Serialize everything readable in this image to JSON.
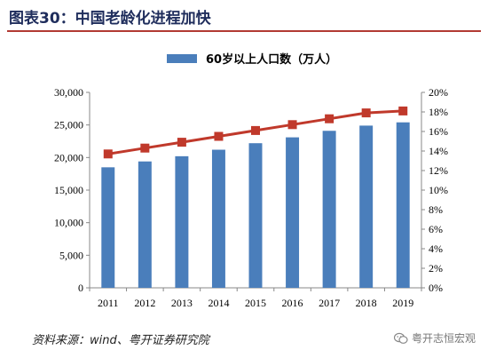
{
  "figure": {
    "title": "图表30：中国老龄化进程加快",
    "source": "资料来源：wind、粤开证券研究院",
    "watermark": "粤开志恒宏观",
    "watermark_icon": "wechat-icon"
  },
  "colors": {
    "bar": "#4a7ebb",
    "line": "#c0392b",
    "title": "#1f2d5c",
    "rule": "#b23a33",
    "axis": "#888888"
  },
  "chart_data": {
    "type": "bar",
    "categories": [
      "2011",
      "2012",
      "2013",
      "2014",
      "2015",
      "2016",
      "2017",
      "2018",
      "2019"
    ],
    "series": [
      {
        "name": "60岁以上人口数（万人）",
        "type": "bar",
        "axis": "left",
        "values": [
          18500,
          19400,
          20200,
          21200,
          22200,
          23100,
          24100,
          24900,
          25400
        ]
      },
      {
        "name": "",
        "type": "line",
        "axis": "right",
        "values": [
          0.137,
          0.143,
          0.149,
          0.155,
          0.161,
          0.167,
          0.173,
          0.179,
          0.181
        ]
      }
    ],
    "y_left": {
      "min": 0,
      "max": 30000,
      "ticks": [
        "0",
        "5,000",
        "10,000",
        "15,000",
        "20,000",
        "25,000",
        "30,000"
      ],
      "tick_values": [
        0,
        5000,
        10000,
        15000,
        20000,
        25000,
        30000
      ]
    },
    "y_right": {
      "min": 0,
      "max": 0.2,
      "ticks": [
        "0%",
        "2%",
        "4%",
        "6%",
        "8%",
        "10%",
        "12%",
        "14%",
        "16%",
        "18%",
        "20%"
      ],
      "tick_values": [
        0,
        0.02,
        0.04,
        0.06,
        0.08,
        0.1,
        0.12,
        0.14,
        0.16,
        0.18,
        0.2
      ]
    },
    "legend": {
      "position": "top-center",
      "label": "60岁以上人口数（万人）"
    },
    "grid": false
  }
}
